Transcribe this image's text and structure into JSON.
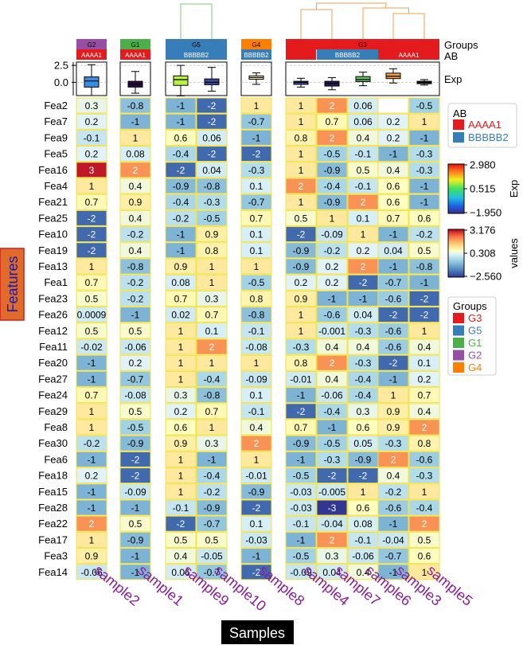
{
  "chart_data": {
    "type": "heatmap",
    "xlabel": "Samples",
    "ylabel": "Features",
    "samples": [
      "sample2",
      "sample1",
      "sample9",
      "sample10",
      "sample8",
      "sample4",
      "sample7",
      "sample6",
      "sample3",
      "sample5"
    ],
    "features": [
      "Fea2",
      "Fea7",
      "Fea9",
      "Fea5",
      "Fea16",
      "Fea4",
      "Fea21",
      "Fea25",
      "Fea10",
      "Fea19",
      "Fea13",
      "Fea1",
      "Fea23",
      "Fea26",
      "Fea12",
      "Fea11",
      "Fea20",
      "Fea27",
      "Fea24",
      "Fea29",
      "Fea8",
      "Fea30",
      "Fea6",
      "Fea18",
      "Fea15",
      "Fea28",
      "Fea22",
      "Fea17",
      "Fea3",
      "Fea14"
    ],
    "groups": [
      {
        "name": "G2",
        "color": "#984ea3",
        "samples": [
          "sample2"
        ]
      },
      {
        "name": "G1",
        "color": "#4daf4a",
        "samples": [
          "sample1"
        ]
      },
      {
        "name": "G5",
        "color": "#377eb8",
        "samples": [
          "sample9",
          "sample10"
        ]
      },
      {
        "name": "G4",
        "color": "#ff7f00",
        "samples": [
          "sample8"
        ]
      },
      {
        "name": "G3",
        "color": "#e41a1c",
        "samples": [
          "sample4",
          "sample7",
          "sample6",
          "sample3",
          "sample5"
        ]
      }
    ],
    "annotation_titles": {
      "groups": "Groups",
      "ab": "AB",
      "exp": "Exp"
    },
    "ab": [
      "AAAA1",
      "AAAA1",
      "BBBBB2",
      "BBBBB2",
      "BBBBB2",
      "AAAA1",
      "BBBBB2",
      "BBBBB2",
      "AAAA1",
      "AAAA1"
    ],
    "ab_colors": {
      "AAAA1": "#e41a1c",
      "BBBBB2": "#377eb8"
    },
    "ab_bar_labels": [
      {
        "label": "AAAA1",
        "samples": [
          "sample2"
        ]
      },
      {
        "label": "AAAA1",
        "samples": [
          "sample1"
        ]
      },
      {
        "label": "BBBBB2",
        "samples": [
          "sample9",
          "sample10"
        ]
      },
      {
        "label": "BBBBB2",
        "samples": [
          "sample8"
        ]
      },
      {
        "label": "BBBBB2",
        "samples": [
          "sample7",
          "sample6"
        ]
      },
      {
        "label": "AAAA1",
        "samples": [
          "sample3",
          "sample5"
        ]
      }
    ],
    "exp_boxplot": {
      "yticks": [
        2.5,
        0.0
      ],
      "ylim": [
        -1.95,
        2.98
      ],
      "colors": [
        "#3a8de0",
        "#2a0a4a",
        "#b8f048",
        "#3a4aa0",
        "#fff0a0",
        "#3a4aa0",
        "#2a1a5a",
        "#6ac06a",
        "#f0a040",
        "#222222"
      ],
      "stats": [
        {
          "min": -1.95,
          "q1": -0.7,
          "median": 0.2,
          "q3": 0.8,
          "max": 2.6
        },
        {
          "min": -1.6,
          "q1": -0.7,
          "median": -0.25,
          "q3": 0.15,
          "max": 1.6
        },
        {
          "min": -2.0,
          "q1": -0.45,
          "median": 0.4,
          "q3": 0.95,
          "max": 2.5
        },
        {
          "min": -1.3,
          "q1": -0.35,
          "median": 0.0,
          "q3": 0.5,
          "max": 2.2
        },
        {
          "min": -0.3,
          "q1": 0.45,
          "median": 0.7,
          "q3": 0.95,
          "max": 1.4
        },
        {
          "min": -0.7,
          "q1": -0.3,
          "median": 0.0,
          "q3": 0.15,
          "max": 0.6
        },
        {
          "min": -1.1,
          "q1": -0.55,
          "median": -0.15,
          "q3": 0.15,
          "max": 0.7
        },
        {
          "min": -0.5,
          "q1": 0.1,
          "median": 0.4,
          "q3": 0.85,
          "max": 1.5
        },
        {
          "min": -0.1,
          "q1": 0.55,
          "median": 0.9,
          "q3": 1.35,
          "max": 2.0
        },
        {
          "min": -0.4,
          "q1": -0.2,
          "median": 0.0,
          "q3": 0.15,
          "max": 0.4
        }
      ]
    },
    "values": [
      [
        0.3,
        -0.8,
        -1,
        -2,
        1,
        1,
        2,
        0.06,
        null,
        -0.5
      ],
      [
        0.2,
        -1,
        -1,
        -2,
        -0.7,
        1,
        0.7,
        0.06,
        0.2,
        1
      ],
      [
        -0.1,
        1,
        0.6,
        0.06,
        -1,
        0.8,
        2,
        0.4,
        0.2,
        -1
      ],
      [
        0.2,
        0.08,
        -0.4,
        -2,
        -2,
        1,
        -0.5,
        -0.1,
        -1,
        -0.3
      ],
      [
        3,
        2,
        -2,
        0.04,
        -0.3,
        1,
        -0.9,
        0.5,
        0.4,
        -0.3
      ],
      [
        1,
        0.4,
        -0.9,
        -0.8,
        0.1,
        2,
        -0.4,
        -0.1,
        0.6,
        -1
      ],
      [
        0.7,
        0.9,
        -0.4,
        -0.3,
        -0.7,
        1,
        -0.9,
        2,
        0.6,
        -1
      ],
      [
        -2,
        0.4,
        -0.2,
        -0.5,
        0.7,
        0.5,
        1,
        0.1,
        0.7,
        0.6
      ],
      [
        -2,
        -0.2,
        -1,
        0.9,
        0.1,
        -2,
        -0.09,
        1,
        -1,
        -0.2
      ],
      [
        -2,
        0.4,
        -1,
        0.8,
        0.1,
        -0.9,
        -0.2,
        0.2,
        0.04,
        0.5
      ],
      [
        1,
        -0.8,
        0.9,
        1,
        1,
        -0.9,
        0.2,
        2,
        -1,
        -0.8
      ],
      [
        0.7,
        -0.2,
        0.08,
        1,
        -0.5,
        0.2,
        0.2,
        -2,
        -0.7,
        -1
      ],
      [
        0.5,
        -0.2,
        0.7,
        0.3,
        0.8,
        0.9,
        -1,
        -1,
        -0.6,
        -2
      ],
      [
        0.0009,
        -1,
        0.02,
        0.7,
        -0.8,
        1,
        -0.6,
        0.04,
        -2,
        -2
      ],
      [
        0.5,
        0.5,
        1,
        0.1,
        -0.1,
        1,
        -0.001,
        -0.3,
        -0.6,
        1
      ],
      [
        -0.02,
        -0.06,
        1,
        2,
        -0.08,
        -0.3,
        0.4,
        0.4,
        -0.6,
        0.4
      ],
      [
        -1,
        0.2,
        1,
        1,
        1,
        0.8,
        2,
        -0.3,
        -2,
        0.1
      ],
      [
        -1,
        -0.7,
        1,
        -0.4,
        -0.09,
        -0.01,
        0.4,
        -0.4,
        -1,
        0.2
      ],
      [
        0.7,
        -0.08,
        0.3,
        -0.8,
        0.1,
        -1,
        -0.06,
        -0.4,
        1,
        0.7
      ],
      [
        1,
        0.5,
        0.2,
        0.7,
        -0.1,
        -2,
        -0.4,
        0.3,
        0.9,
        0.4
      ],
      [
        1,
        -0.5,
        0.6,
        1,
        0.4,
        0.7,
        -1,
        0.6,
        0.9,
        2
      ],
      [
        -0.2,
        -0.9,
        0.9,
        0.3,
        2,
        -0.9,
        -0.5,
        0.05,
        -0.3,
        0.8
      ],
      [
        -1,
        -2,
        1,
        -1,
        1,
        -1,
        -0.3,
        -0.9,
        2,
        -0.6
      ],
      [
        0.2,
        -2,
        1,
        -0.4,
        -0.01,
        -0.5,
        -2,
        -2,
        0.4,
        -0.3
      ],
      [
        -1,
        -0.09,
        1,
        -0.2,
        -0.9,
        -0.03,
        -0.005,
        1,
        -0.2,
        1
      ],
      [
        -1,
        -1,
        -0.1,
        -0.9,
        -2,
        -0.03,
        -3,
        0.6,
        -0.6,
        -0.4
      ],
      [
        2,
        0.5,
        -2,
        -0.7,
        0.1,
        -0.1,
        -0.04,
        0.08,
        -1,
        2
      ],
      [
        1,
        -0.9,
        0.5,
        0.5,
        -0.03,
        -1,
        2,
        -0.1,
        -0.04,
        0.5
      ],
      [
        0.9,
        -1,
        0.4,
        -0.05,
        -1,
        -0.5,
        0.3,
        -0.06,
        -0.7,
        0.6
      ],
      [
        -0.06,
        -1,
        0.06,
        -0.7,
        -2,
        -0.09,
        0.04,
        0.4,
        -1,
        1
      ]
    ],
    "colorbar_exp": {
      "title": "Exp",
      "min": -1.95,
      "max": 2.98,
      "ticks": [
        "2.980",
        "0.515",
        "−1.950"
      ]
    },
    "colorbar_values": {
      "title": "values",
      "min": -2.56,
      "max": 3.176,
      "ticks": [
        "3.176",
        "0.308",
        "−2.560"
      ]
    },
    "legend_ab": {
      "title": "AB",
      "entries": [
        {
          "label": "AAAA1",
          "color": "#e41a1c"
        },
        {
          "label": "BBBBB2",
          "color": "#377eb8"
        }
      ]
    },
    "legend_groups": {
      "title": "Groups",
      "entries": [
        {
          "label": "G3",
          "color": "#e41a1c"
        },
        {
          "label": "G5",
          "color": "#377eb8"
        },
        {
          "label": "G1",
          "color": "#4daf4a"
        },
        {
          "label": "G2",
          "color": "#984ea3"
        },
        {
          "label": "G4",
          "color": "#ff7f00"
        }
      ]
    },
    "grid": false,
    "legend_placement": "right"
  }
}
